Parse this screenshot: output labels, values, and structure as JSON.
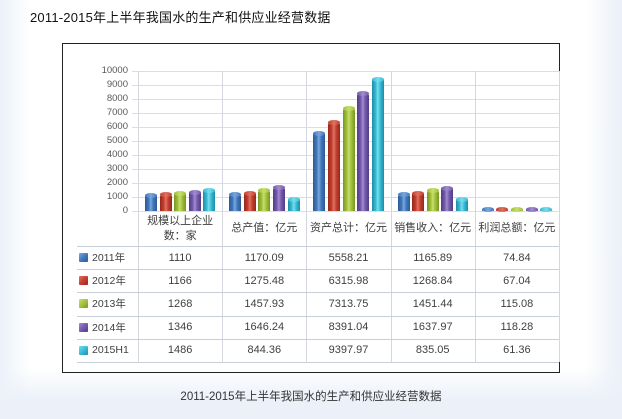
{
  "page": {
    "title": "2011-2015年上半年我国水的生产和供应业经营数据",
    "caption": "2011-2015年上半年我国水的生产和供应业经营数据"
  },
  "chart_data": {
    "type": "bar",
    "title": "2011-2015年上半年我国水的生产和供应业经营数据",
    "style": "3d-cylinder-columns-with-data-table",
    "categories": [
      "规模以上企业数：家",
      "总产值：亿元",
      "资产总计：亿元",
      "销售收入：亿元",
      "利润总额：亿元"
    ],
    "series": [
      {
        "name": "2011年",
        "color": "#3f76ba",
        "color_dark": "#2c5a96",
        "color_light": "#7aa6da",
        "values": [
          1110,
          1170.09,
          5558.21,
          1165.89,
          74.84
        ]
      },
      {
        "name": "2012年",
        "color": "#c23d2d",
        "color_dark": "#93281c",
        "color_light": "#de7261",
        "values": [
          1166,
          1275.48,
          6315.98,
          1268.84,
          67.04
        ]
      },
      {
        "name": "2013年",
        "color": "#9fbe37",
        "color_dark": "#789722",
        "color_light": "#c8de70",
        "values": [
          1268,
          1457.93,
          7313.75,
          1451.44,
          115.08
        ]
      },
      {
        "name": "2014年",
        "color": "#7257ac",
        "color_dark": "#513c85",
        "color_light": "#a18ccc",
        "values": [
          1346,
          1646.24,
          8391.04,
          1637.97,
          118.28
        ]
      },
      {
        "name": "2015H1",
        "color": "#35b9d2",
        "color_dark": "#1f8ca5",
        "color_light": "#79dcec",
        "values": [
          1486,
          844.36,
          9397.97,
          835.05,
          61.36
        ]
      }
    ],
    "ylim": [
      0,
      10000
    ],
    "ytick_step": 1000,
    "grid": true,
    "legend_position": "data-table-left",
    "background": "#ffffff",
    "plot_border_color": "#222222"
  }
}
